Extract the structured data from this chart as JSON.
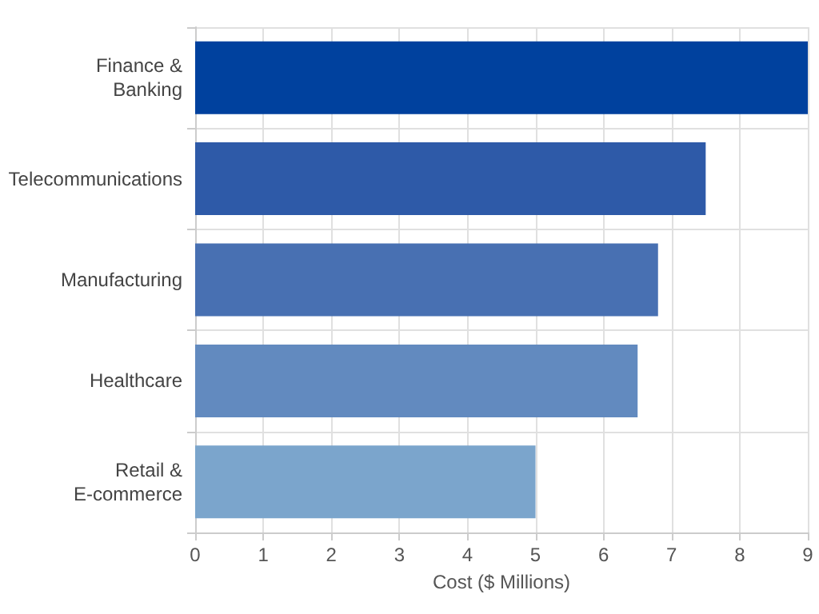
{
  "chart_data": {
    "type": "bar",
    "orientation": "horizontal",
    "categories": [
      "Finance & Banking",
      "Telecommunications",
      "Manufacturing",
      "Healthcare",
      "Retail & E-commerce"
    ],
    "values": [
      9,
      7.5,
      6.8,
      6.5,
      5
    ],
    "colors": [
      "#00419e",
      "#2e5aa8",
      "#4870b2",
      "#628abf",
      "#7ba5cc"
    ],
    "xlabel": "Cost ($ Millions)",
    "xlim": [
      0,
      9
    ],
    "xticks": [
      0,
      1,
      2,
      3,
      4,
      5,
      6,
      7,
      8,
      9
    ],
    "grid": true
  }
}
